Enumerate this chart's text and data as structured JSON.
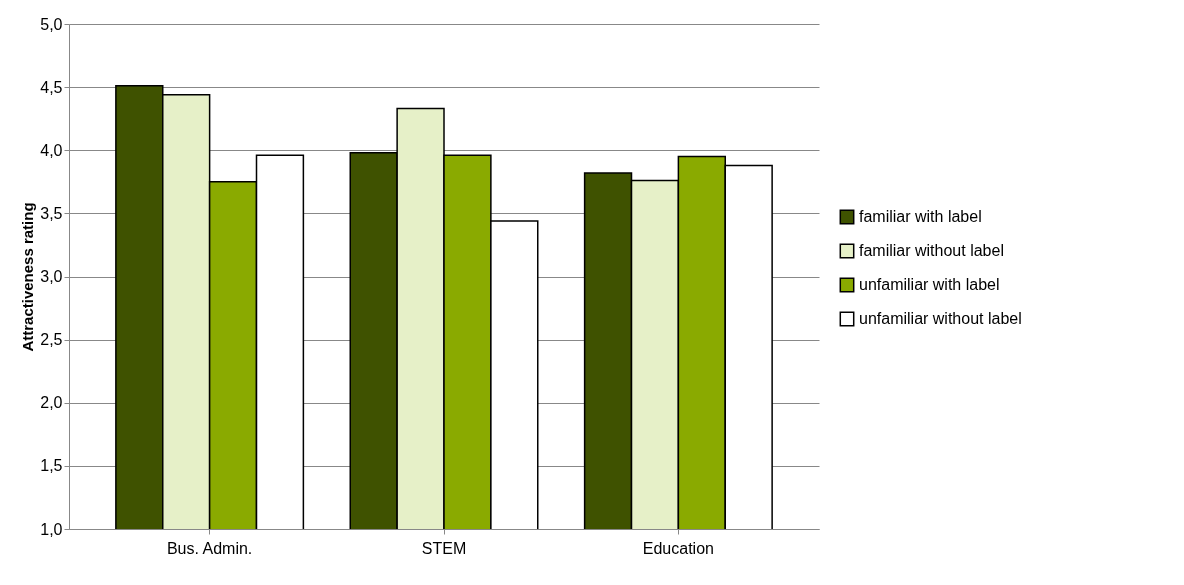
{
  "chart_data": {
    "type": "bar",
    "ylabel": "Attractiveness rating",
    "categories": [
      "Bus. Admin.",
      "STEM",
      "Education"
    ],
    "series": [
      {
        "name": "familiar with label",
        "color": "#3f5200",
        "values": [
          4.51,
          3.98,
          3.82
        ]
      },
      {
        "name": "familiar without label",
        "color": "#e6f0c8",
        "values": [
          4.44,
          4.33,
          3.76
        ]
      },
      {
        "name": "unfamiliar with label",
        "color": "#8aaa00",
        "values": [
          3.75,
          3.96,
          3.95
        ]
      },
      {
        "name": "unfamiliar without label",
        "color": "#ffffff",
        "values": [
          3.96,
          3.44,
          3.88
        ]
      }
    ],
    "ylim": [
      1,
      5
    ],
    "yticks": [
      {
        "value": 1,
        "label": "1,0"
      },
      {
        "value": 1.5,
        "label": "1,5"
      },
      {
        "value": 2,
        "label": "2,0"
      },
      {
        "value": 2.5,
        "label": "2,5"
      },
      {
        "value": 3,
        "label": "3,0"
      },
      {
        "value": 3.5,
        "label": "3,5"
      },
      {
        "value": 4,
        "label": "4,0"
      },
      {
        "value": 4.5,
        "label": "4,5"
      },
      {
        "value": 5,
        "label": "5,0"
      }
    ],
    "grid": "y",
    "legend": "right"
  }
}
